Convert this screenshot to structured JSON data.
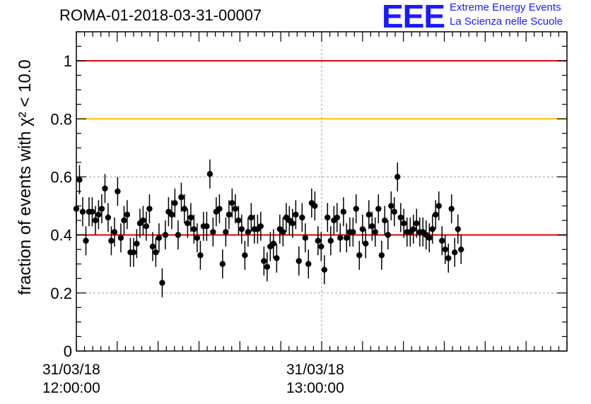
{
  "title": "ROMA-01-2018-03-31-00007",
  "logo": {
    "mark": "EEE",
    "line1": "Extreme Energy Events",
    "line2": "La Scienza nelle Scuole",
    "color": "#1a1aff"
  },
  "chart_data": {
    "type": "scatter",
    "title": "ROMA-01-2018-03-31-00007",
    "ylabel": "fraction of events with χ² < 10.0",
    "ylim": [
      0,
      1.1
    ],
    "yticks": [
      0,
      0.2,
      0.4,
      0.6,
      0.8,
      1
    ],
    "ytick_labels": [
      "0",
      "0.2",
      "0.4",
      "0.6",
      "0.8",
      "1"
    ],
    "xlim": [
      "11:59:40",
      "13:59:40"
    ],
    "xtick_labels": [
      {
        "date": "31/03/18",
        "time": "12:00:00"
      },
      {
        "date": "31/03/18",
        "time": "13:00:00"
      }
    ],
    "grid": true,
    "reference_lines": [
      {
        "y": 1.0,
        "color": "#e00000"
      },
      {
        "y": 0.8,
        "color": "#ffc000"
      },
      {
        "y": 0.4,
        "color": "#e00000"
      }
    ],
    "series": [
      {
        "marker_color": "#000000",
        "error": 0.05,
        "points": [
          {
            "x": "11:59:40",
            "y": 0.49
          },
          {
            "x": "12:00:26",
            "y": 0.59
          },
          {
            "x": "12:01:13",
            "y": 0.48
          },
          {
            "x": "12:02:00",
            "y": 0.38
          },
          {
            "x": "12:02:46",
            "y": 0.48
          },
          {
            "x": "12:03:33",
            "y": 0.48
          },
          {
            "x": "12:04:20",
            "y": 0.45
          },
          {
            "x": "12:05:06",
            "y": 0.47
          },
          {
            "x": "12:05:53",
            "y": 0.49
          },
          {
            "x": "12:06:40",
            "y": 0.56
          },
          {
            "x": "12:07:26",
            "y": 0.46
          },
          {
            "x": "12:08:13",
            "y": 0.38
          },
          {
            "x": "12:09:00",
            "y": 0.41
          },
          {
            "x": "12:09:46",
            "y": 0.55
          },
          {
            "x": "12:10:33",
            "y": 0.39
          },
          {
            "x": "12:11:20",
            "y": 0.45
          },
          {
            "x": "12:12:06",
            "y": 0.47
          },
          {
            "x": "12:12:53",
            "y": 0.34
          },
          {
            "x": "12:13:40",
            "y": 0.34
          },
          {
            "x": "12:14:26",
            "y": 0.37
          },
          {
            "x": "12:15:13",
            "y": 0.44
          },
          {
            "x": "12:16:00",
            "y": 0.45
          },
          {
            "x": "12:16:46",
            "y": 0.43
          },
          {
            "x": "12:17:33",
            "y": 0.49
          },
          {
            "x": "12:18:20",
            "y": 0.36
          },
          {
            "x": "12:19:06",
            "y": 0.34
          },
          {
            "x": "12:19:53",
            "y": 0.39
          },
          {
            "x": "12:20:40",
            "y": 0.235
          },
          {
            "x": "12:21:26",
            "y": 0.4
          },
          {
            "x": "12:22:13",
            "y": 0.48
          },
          {
            "x": "12:23:00",
            "y": 0.47
          },
          {
            "x": "12:23:46",
            "y": 0.51
          },
          {
            "x": "12:24:33",
            "y": 0.4
          },
          {
            "x": "12:25:20",
            "y": 0.53
          },
          {
            "x": "12:26:06",
            "y": 0.49
          },
          {
            "x": "12:26:53",
            "y": 0.44
          },
          {
            "x": "12:27:40",
            "y": 0.46
          },
          {
            "x": "12:28:26",
            "y": 0.42
          },
          {
            "x": "12:29:13",
            "y": 0.39
          },
          {
            "x": "12:30:00",
            "y": 0.33
          },
          {
            "x": "12:30:46",
            "y": 0.43
          },
          {
            "x": "12:31:33",
            "y": 0.43
          },
          {
            "x": "12:32:20",
            "y": 0.61
          },
          {
            "x": "12:33:06",
            "y": 0.41
          },
          {
            "x": "12:33:53",
            "y": 0.48
          },
          {
            "x": "12:34:40",
            "y": 0.49
          },
          {
            "x": "12:35:26",
            "y": 0.3
          },
          {
            "x": "12:36:13",
            "y": 0.41
          },
          {
            "x": "12:37:00",
            "y": 0.47
          },
          {
            "x": "12:37:46",
            "y": 0.51
          },
          {
            "x": "12:38:33",
            "y": 0.49
          },
          {
            "x": "12:39:20",
            "y": 0.45
          },
          {
            "x": "12:40:06",
            "y": 0.42
          },
          {
            "x": "12:40:53",
            "y": 0.33
          },
          {
            "x": "12:41:40",
            "y": 0.41
          },
          {
            "x": "12:42:26",
            "y": 0.46
          },
          {
            "x": "12:43:13",
            "y": 0.42
          },
          {
            "x": "12:44:00",
            "y": 0.42
          },
          {
            "x": "12:44:46",
            "y": 0.43
          },
          {
            "x": "12:45:33",
            "y": 0.31
          },
          {
            "x": "12:46:20",
            "y": 0.29
          },
          {
            "x": "12:47:06",
            "y": 0.36
          },
          {
            "x": "12:47:53",
            "y": 0.37
          },
          {
            "x": "12:48:40",
            "y": 0.32
          },
          {
            "x": "12:49:26",
            "y": 0.42
          },
          {
            "x": "12:50:13",
            "y": 0.41
          },
          {
            "x": "12:51:00",
            "y": 0.46
          },
          {
            "x": "12:51:46",
            "y": 0.45
          },
          {
            "x": "12:52:33",
            "y": 0.44
          },
          {
            "x": "12:53:20",
            "y": 0.47
          },
          {
            "x": "12:54:06",
            "y": 0.31
          },
          {
            "x": "12:54:53",
            "y": 0.46
          },
          {
            "x": "12:55:40",
            "y": 0.39
          },
          {
            "x": "12:56:26",
            "y": 0.3
          },
          {
            "x": "12:57:13",
            "y": 0.51
          },
          {
            "x": "12:58:00",
            "y": 0.5
          },
          {
            "x": "12:58:46",
            "y": 0.38
          },
          {
            "x": "12:59:33",
            "y": 0.36
          },
          {
            "x": "13:00:20",
            "y": 0.28
          },
          {
            "x": "13:01:06",
            "y": 0.46
          },
          {
            "x": "13:01:53",
            "y": 0.38
          },
          {
            "x": "13:02:40",
            "y": 0.45
          },
          {
            "x": "13:03:26",
            "y": 0.46
          },
          {
            "x": "13:04:13",
            "y": 0.39
          },
          {
            "x": "13:05:00",
            "y": 0.48
          },
          {
            "x": "13:05:46",
            "y": 0.39
          },
          {
            "x": "13:06:33",
            "y": 0.41
          },
          {
            "x": "13:07:20",
            "y": 0.41
          },
          {
            "x": "13:08:06",
            "y": 0.49
          },
          {
            "x": "13:08:53",
            "y": 0.33
          },
          {
            "x": "13:09:40",
            "y": 0.42
          },
          {
            "x": "13:10:26",
            "y": 0.37
          },
          {
            "x": "13:11:13",
            "y": 0.47
          },
          {
            "x": "13:12:00",
            "y": 0.43
          },
          {
            "x": "13:12:46",
            "y": 0.41
          },
          {
            "x": "13:13:33",
            "y": 0.49
          },
          {
            "x": "13:14:20",
            "y": 0.33
          },
          {
            "x": "13:15:06",
            "y": 0.45
          },
          {
            "x": "13:15:53",
            "y": 0.4
          },
          {
            "x": "13:16:40",
            "y": 0.5
          },
          {
            "x": "13:17:26",
            "y": 0.48
          },
          {
            "x": "13:18:13",
            "y": 0.6
          },
          {
            "x": "13:19:00",
            "y": 0.46
          },
          {
            "x": "13:19:46",
            "y": 0.44
          },
          {
            "x": "13:20:33",
            "y": 0.41
          },
          {
            "x": "13:21:20",
            "y": 0.41
          },
          {
            "x": "13:22:06",
            "y": 0.42
          },
          {
            "x": "13:22:53",
            "y": 0.44
          },
          {
            "x": "13:23:40",
            "y": 0.41
          },
          {
            "x": "13:24:26",
            "y": 0.41
          },
          {
            "x": "13:25:13",
            "y": 0.4
          },
          {
            "x": "13:26:00",
            "y": 0.39
          },
          {
            "x": "13:26:46",
            "y": 0.42
          },
          {
            "x": "13:27:33",
            "y": 0.47
          },
          {
            "x": "13:28:20",
            "y": 0.5
          },
          {
            "x": "13:29:06",
            "y": 0.38
          },
          {
            "x": "13:29:53",
            "y": 0.35
          },
          {
            "x": "13:30:40",
            "y": 0.32
          },
          {
            "x": "13:31:26",
            "y": 0.49
          },
          {
            "x": "13:32:13",
            "y": 0.34
          },
          {
            "x": "13:33:00",
            "y": 0.42
          },
          {
            "x": "13:33:46",
            "y": 0.35
          }
        ]
      }
    ]
  }
}
